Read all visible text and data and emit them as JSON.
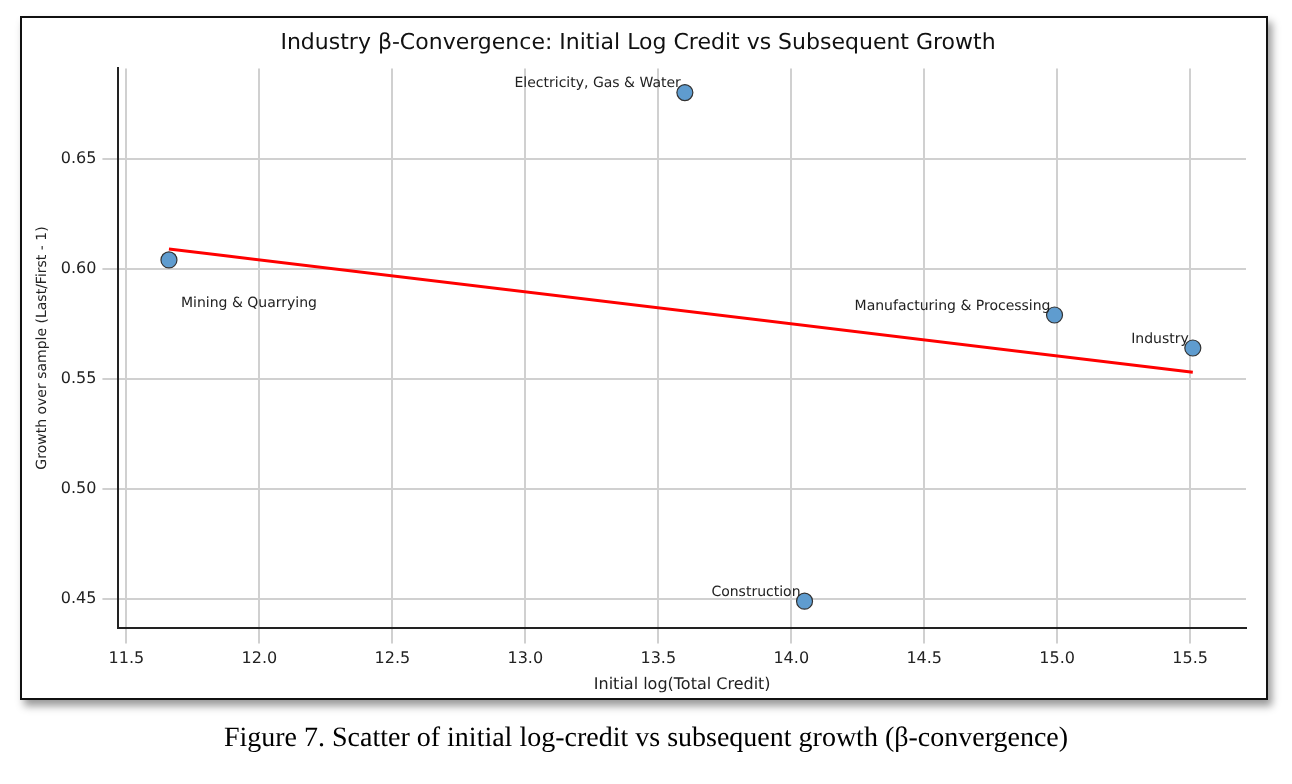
{
  "chart_data": {
    "type": "scatter",
    "title": "Industry β-Convergence: Initial Log Credit vs Subsequent Growth",
    "xlabel": "Initial log(Total Credit)",
    "ylabel": "Growth over sample (Last/First - 1)",
    "series": [
      {
        "type": "scatter",
        "color": "#5f9ccf",
        "marker": "circle",
        "x": [
          11.66,
          13.6,
          14.05,
          14.99,
          15.51
        ],
        "values": [
          0.604,
          0.68,
          0.449,
          0.579,
          0.564
        ]
      },
      {
        "type": "line",
        "color": "#ff0000",
        "line_style": "solid",
        "marker": "none",
        "x": [
          11.66,
          15.51
        ],
        "values": [
          0.609,
          0.553
        ]
      }
    ],
    "annotations": [
      {
        "text": "Mining & Quarrying",
        "x": 11.66,
        "y": 0.604
      },
      {
        "text": "Electricity, Gas & Water",
        "x": 13.6,
        "y": 0.68
      },
      {
        "text": "Construction",
        "x": 14.05,
        "y": 0.449
      },
      {
        "text": "Manufacturing & Processing",
        "x": 14.99,
        "y": 0.579
      },
      {
        "text": "Industry",
        "x": 15.51,
        "y": 0.564
      },
      "Figure 7. Scatter of initial log-credit vs subsequent growth (β-convergence)"
    ],
    "xlim": [
      11.47,
      15.71
    ],
    "ylim": [
      0.437,
      0.691
    ],
    "xticks": [
      {
        "value": 11.5,
        "label": "11.5"
      },
      {
        "value": 12,
        "label": "12.0"
      },
      {
        "value": 12.5,
        "label": "12.5"
      },
      {
        "value": 13,
        "label": "13.0"
      },
      {
        "value": 13.5,
        "label": "13.5"
      },
      {
        "value": 14,
        "label": "14.0"
      },
      {
        "value": 14.5,
        "label": "14.5"
      },
      {
        "value": 15,
        "label": "15.0"
      },
      {
        "value": 15.5,
        "label": "15.5"
      }
    ],
    "yticks": [
      {
        "value": 0.45,
        "label": "0.45"
      },
      {
        "value": 0.5,
        "label": "0.50"
      },
      {
        "value": 0.55,
        "label": "0.55"
      },
      {
        "value": 0.6,
        "label": "0.60"
      },
      {
        "value": 0.65,
        "label": "0.65"
      }
    ],
    "grid": true,
    "legend": false
  }
}
